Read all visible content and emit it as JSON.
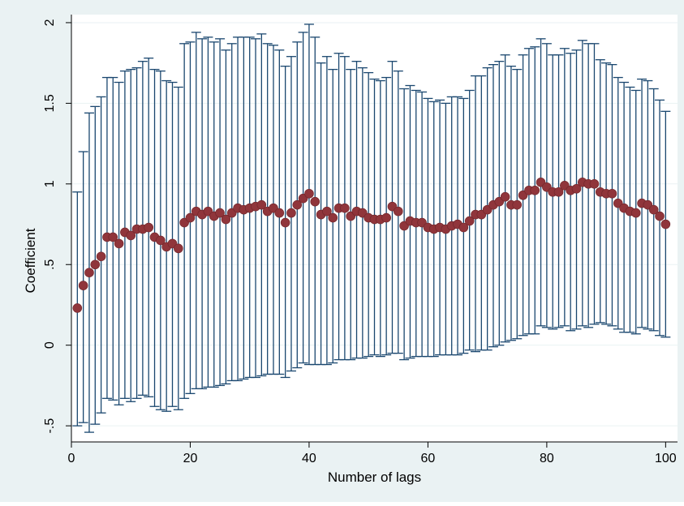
{
  "colors": {
    "outer_background": "#eaf2f3",
    "plot_background": "#ffffff",
    "gridline": "#eaf2f3",
    "error_bar": "#1a476f",
    "marker": "#90353b"
  },
  "chart_data": {
    "type": "scatter",
    "xlabel": "Number of lags",
    "ylabel": "Coefficient",
    "xlim": [
      0,
      102
    ],
    "ylim": [
      -0.6,
      2.05
    ],
    "xticks": [
      0,
      20,
      40,
      60,
      80,
      100
    ],
    "xtick_labels": [
      "0",
      "20",
      "40",
      "60",
      "80",
      "100"
    ],
    "yticks": [
      -0.5,
      0,
      0.5,
      1,
      1.5,
      2
    ],
    "ytick_labels": [
      "-.5",
      "0",
      ".5",
      "1",
      "1.5",
      "2"
    ],
    "grid": true,
    "legend": "none",
    "series": [
      {
        "x": [
          1,
          2,
          3,
          4,
          5,
          6,
          7,
          8,
          9,
          10,
          11,
          12,
          13,
          14,
          15,
          16,
          17,
          18,
          19,
          20,
          21,
          22,
          23,
          24,
          25,
          26,
          27,
          28,
          29,
          30,
          31,
          32,
          33,
          34,
          35,
          36,
          37,
          38,
          39,
          40,
          41,
          42,
          43,
          44,
          45,
          46,
          47,
          48,
          49,
          50,
          51,
          52,
          53,
          54,
          55,
          56,
          57,
          58,
          59,
          60,
          61,
          62,
          63,
          64,
          65,
          66,
          67,
          68,
          69,
          70,
          71,
          72,
          73,
          74,
          75,
          76,
          77,
          78,
          79,
          80,
          81,
          82,
          83,
          84,
          85,
          86,
          87,
          88,
          89,
          90,
          91,
          92,
          93,
          94,
          95,
          96,
          97,
          98,
          99,
          100
        ],
        "y": [
          0.23,
          0.37,
          0.45,
          0.5,
          0.55,
          0.67,
          0.67,
          0.63,
          0.7,
          0.68,
          0.72,
          0.72,
          0.73,
          0.67,
          0.65,
          0.61,
          0.63,
          0.6,
          0.76,
          0.79,
          0.83,
          0.81,
          0.83,
          0.8,
          0.82,
          0.78,
          0.82,
          0.85,
          0.84,
          0.85,
          0.86,
          0.87,
          0.83,
          0.85,
          0.82,
          0.76,
          0.82,
          0.87,
          0.91,
          0.94,
          0.89,
          0.81,
          0.83,
          0.79,
          0.85,
          0.85,
          0.8,
          0.83,
          0.82,
          0.79,
          0.78,
          0.78,
          0.79,
          0.86,
          0.83,
          0.74,
          0.77,
          0.76,
          0.76,
          0.73,
          0.72,
          0.73,
          0.72,
          0.74,
          0.75,
          0.73,
          0.77,
          0.81,
          0.81,
          0.84,
          0.87,
          0.89,
          0.92,
          0.87,
          0.87,
          0.93,
          0.96,
          0.96,
          1.01,
          0.98,
          0.95,
          0.95,
          0.99,
          0.96,
          0.97,
          1.01,
          1.0,
          1.0,
          0.95,
          0.94,
          0.94,
          0.88,
          0.85,
          0.83,
          0.82,
          0.88,
          0.87,
          0.84,
          0.8,
          0.75
        ],
        "ci_low": [
          -0.5,
          -0.48,
          -0.54,
          -0.49,
          -0.42,
          -0.33,
          -0.34,
          -0.37,
          -0.33,
          -0.35,
          -0.33,
          -0.31,
          -0.32,
          -0.38,
          -0.4,
          -0.41,
          -0.38,
          -0.4,
          -0.33,
          -0.3,
          -0.27,
          -0.27,
          -0.26,
          -0.26,
          -0.25,
          -0.24,
          -0.22,
          -0.22,
          -0.21,
          -0.2,
          -0.2,
          -0.19,
          -0.18,
          -0.18,
          -0.18,
          -0.2,
          -0.16,
          -0.14,
          -0.11,
          -0.12,
          -0.12,
          -0.12,
          -0.12,
          -0.11,
          -0.09,
          -0.09,
          -0.09,
          -0.08,
          -0.08,
          -0.07,
          -0.06,
          -0.07,
          -0.06,
          -0.05,
          -0.05,
          -0.09,
          -0.08,
          -0.07,
          -0.07,
          -0.07,
          -0.07,
          -0.06,
          -0.06,
          -0.06,
          -0.06,
          -0.05,
          -0.03,
          -0.04,
          -0.03,
          -0.03,
          -0.01,
          0.0,
          0.02,
          0.03,
          0.04,
          0.06,
          0.07,
          0.07,
          0.12,
          0.11,
          0.1,
          0.11,
          0.12,
          0.09,
          0.1,
          0.12,
          0.11,
          0.13,
          0.14,
          0.13,
          0.12,
          0.1,
          0.08,
          0.08,
          0.07,
          0.11,
          0.1,
          0.09,
          0.06,
          0.05
        ],
        "ci_high": [
          0.95,
          1.2,
          1.44,
          1.48,
          1.54,
          1.66,
          1.66,
          1.63,
          1.7,
          1.71,
          1.72,
          1.76,
          1.78,
          1.71,
          1.7,
          1.64,
          1.63,
          1.6,
          1.87,
          1.88,
          1.94,
          1.9,
          1.91,
          1.88,
          1.9,
          1.83,
          1.87,
          1.91,
          1.91,
          1.91,
          1.9,
          1.93,
          1.87,
          1.86,
          1.83,
          1.73,
          1.79,
          1.88,
          1.94,
          1.99,
          1.91,
          1.75,
          1.79,
          1.71,
          1.81,
          1.79,
          1.71,
          1.76,
          1.72,
          1.69,
          1.65,
          1.64,
          1.66,
          1.76,
          1.7,
          1.59,
          1.61,
          1.58,
          1.57,
          1.53,
          1.51,
          1.52,
          1.5,
          1.54,
          1.54,
          1.53,
          1.58,
          1.67,
          1.67,
          1.72,
          1.74,
          1.76,
          1.8,
          1.73,
          1.71,
          1.8,
          1.84,
          1.85,
          1.9,
          1.87,
          1.8,
          1.8,
          1.84,
          1.81,
          1.83,
          1.89,
          1.87,
          1.87,
          1.77,
          1.75,
          1.74,
          1.66,
          1.63,
          1.6,
          1.58,
          1.65,
          1.64,
          1.59,
          1.52,
          1.45
        ]
      }
    ]
  }
}
